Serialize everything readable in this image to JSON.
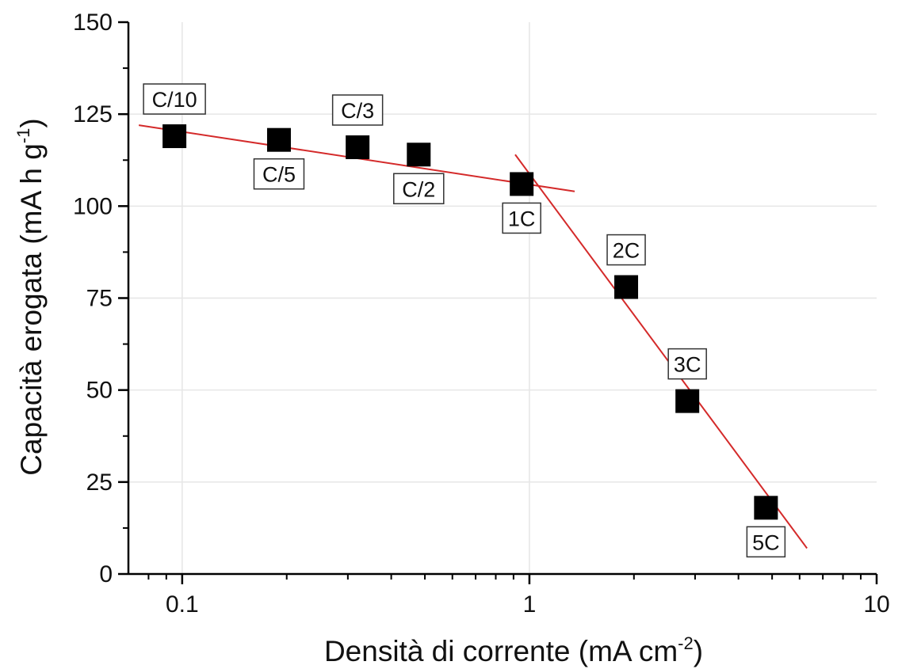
{
  "chart_data": {
    "type": "scatter",
    "x_scale": "log",
    "xlim": [
      0.07,
      10
    ],
    "ylim": [
      0,
      150
    ],
    "grid": true,
    "xlabel": {
      "main": "Densità di corrente (mA cm",
      "sup": "-2",
      "end": ")"
    },
    "ylabel": {
      "main": "Capacità erogata (mA h g",
      "sup": "-1",
      "end": ")"
    },
    "x_ticks": [
      0.1,
      1,
      10
    ],
    "x_tick_labels": [
      "0.1",
      "1",
      "10"
    ],
    "y_ticks": [
      0,
      25,
      50,
      75,
      100,
      125,
      150
    ],
    "y_tick_labels": [
      "0",
      "25",
      "50",
      "75",
      "100",
      "125",
      "150"
    ],
    "points": [
      {
        "label": "C/10",
        "x": 0.095,
        "y": 119,
        "label_pos": "above"
      },
      {
        "label": "C/5",
        "x": 0.19,
        "y": 118,
        "label_pos": "below"
      },
      {
        "label": "C/3",
        "x": 0.32,
        "y": 116,
        "label_pos": "above"
      },
      {
        "label": "C/2",
        "x": 0.48,
        "y": 114,
        "label_pos": "below"
      },
      {
        "label": "1C",
        "x": 0.95,
        "y": 106,
        "label_pos": "below"
      },
      {
        "label": "2C",
        "x": 1.9,
        "y": 78,
        "label_pos": "above"
      },
      {
        "label": "3C",
        "x": 2.85,
        "y": 47,
        "label_pos": "above"
      },
      {
        "label": "5C",
        "x": 4.8,
        "y": 18,
        "label_pos": "below"
      }
    ],
    "fit_lines": [
      {
        "x": [
          0.075,
          1.35
        ],
        "y": [
          122,
          104
        ]
      },
      {
        "x": [
          0.91,
          6.3
        ],
        "y": [
          114,
          7
        ]
      }
    ],
    "colors": {
      "marker": "#000000",
      "fit_line": "#d42a2a",
      "grid": "#e6e6e6",
      "axis": "#000000"
    }
  }
}
